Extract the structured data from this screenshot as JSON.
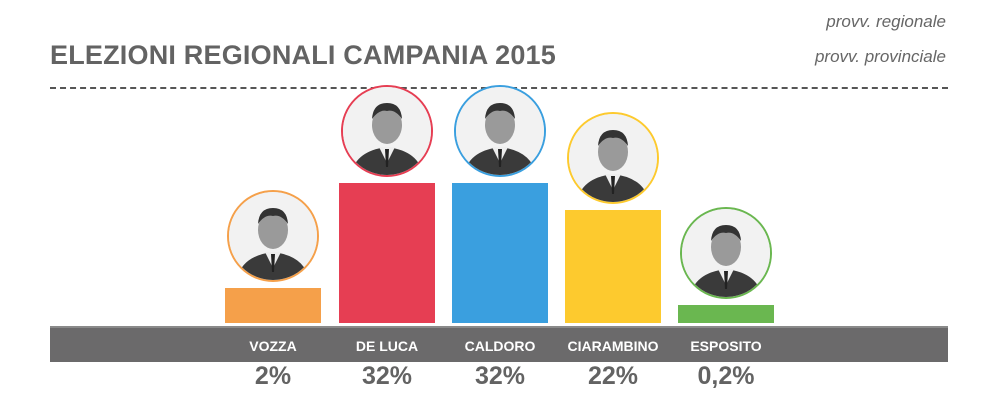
{
  "header": {
    "title": "ELEZIONI REGIONALI CAMPANIA 2015",
    "notes": [
      "provv. regionale",
      "provv. provinciale"
    ]
  },
  "chart_data": {
    "type": "bar",
    "title": "ELEZIONI REGIONALI CAMPANIA 2015",
    "categories": [
      "VOZZA",
      "DE LUCA",
      "CALDORO",
      "CIARAMBINO",
      "ESPOSITO"
    ],
    "values": [
      2,
      32,
      32,
      22,
      0.2
    ],
    "labels": [
      "2%",
      "32%",
      "32%",
      "22%",
      "0,2%"
    ],
    "colors": [
      "#f5a04a",
      "#e63e53",
      "#3a9fdf",
      "#fdca2e",
      "#6ab750"
    ],
    "xlabel": "",
    "ylabel": "",
    "unit": "%"
  }
}
